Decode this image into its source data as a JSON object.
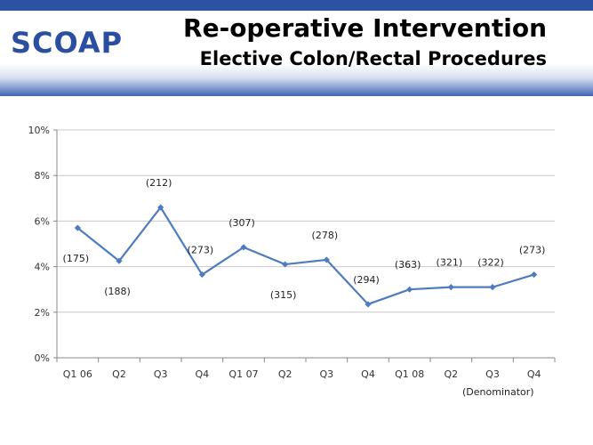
{
  "header": {
    "logo_text": "SCOAP",
    "title": "Re-operative Intervention",
    "subtitle": "Elective Colon/Rectal Procedures"
  },
  "colors": {
    "brand_blue": "#2b52a3",
    "series": "#4f7bbf",
    "grid": "#c8c8c8"
  },
  "chart_data": {
    "type": "line",
    "title": "",
    "xlabel": "",
    "ylabel": "",
    "categories": [
      "Q1 06",
      "Q2",
      "Q3",
      "Q4",
      "Q1 07",
      "Q2",
      "Q3",
      "Q4",
      "Q1 08",
      "Q2",
      "Q3",
      "Q4"
    ],
    "series": [
      {
        "values": [
          5.7,
          4.25,
          6.6,
          3.65,
          4.85,
          4.1,
          4.3,
          2.35,
          3.0,
          3.1,
          3.1,
          3.65
        ]
      }
    ],
    "data_labels": [
      "(175)",
      "(188)",
      "(212)",
      "(273)",
      "(307)",
      "(315)",
      "(278)",
      "(294)",
      "(363)",
      "(321)",
      "(322)",
      "(273)"
    ],
    "label_position": [
      "below",
      "below",
      "above",
      "above",
      "above",
      "below",
      "above",
      "above",
      "above",
      "above",
      "above",
      "above"
    ],
    "ylim": [
      0,
      10
    ],
    "yticks": [
      0,
      2,
      4,
      6,
      8,
      10
    ],
    "ytick_labels": [
      "0%",
      "2%",
      "4%",
      "6%",
      "8%",
      "10%"
    ],
    "grid": true,
    "legend": "none",
    "annotation": "(Denominator)"
  }
}
